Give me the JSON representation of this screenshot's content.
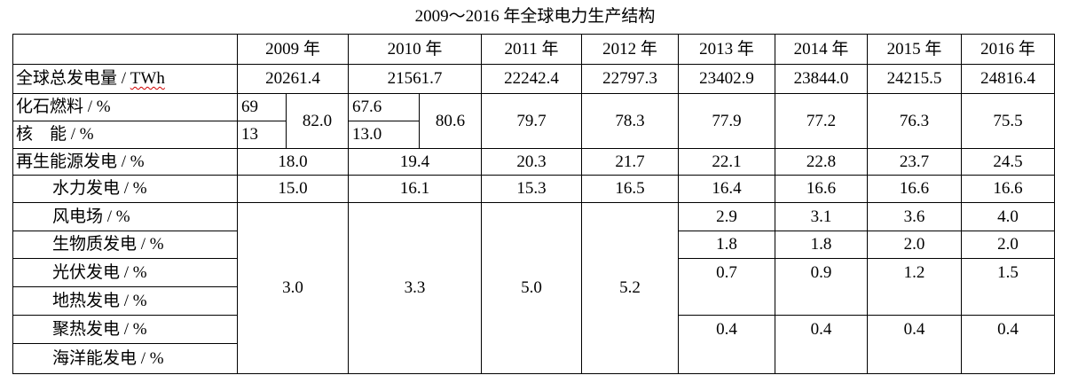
{
  "title": "2009～2016 年全球电力生产结构",
  "years": [
    "2009 年",
    "2010 年",
    "2011 年",
    "2012 年",
    "2013 年",
    "2014 年",
    "2015 年",
    "2016 年"
  ],
  "rows": {
    "total": {
      "label_main": "全球总发电量 / ",
      "label_unit": "TWh",
      "values": [
        "20261.4",
        "21561.7",
        "22242.4",
        "22797.3",
        "23402.9",
        "23844.0",
        "24215.5",
        "24816.4"
      ]
    },
    "fossil": {
      "label": "化石燃料 / %",
      "v2009": "69",
      "v2010": "67.6"
    },
    "nuclear": {
      "label": "核　能 / %",
      "v2009": "13",
      "v2010": "13.0"
    },
    "fossil_nuclear_total": [
      "82.0",
      "80.6",
      "79.7",
      "78.3",
      "77.9",
      "77.2",
      "76.3",
      "75.5"
    ],
    "renewable": {
      "label": "再生能源发电 / %",
      "values": [
        "18.0",
        "19.4",
        "20.3",
        "21.7",
        "22.1",
        "22.8",
        "23.7",
        "24.5"
      ]
    },
    "hydro": {
      "label": "水力发电 / %",
      "values": [
        "15.0",
        "16.1",
        "15.3",
        "16.5",
        "16.4",
        "16.6",
        "16.6",
        "16.6"
      ]
    },
    "other_combined": [
      "3.0",
      "3.3",
      "5.0",
      "5.2"
    ],
    "wind": {
      "label": "风电场 / %",
      "values": [
        "2.9",
        "3.1",
        "3.6",
        "4.0"
      ]
    },
    "biomass": {
      "label": "生物质发电 / %",
      "values": [
        "1.8",
        "1.8",
        "2.0",
        "2.0"
      ]
    },
    "solar": {
      "label": "光伏发电 / %",
      "values": [
        "0.7",
        "0.9",
        "1.2",
        "1.5"
      ]
    },
    "geothermal": {
      "label": "地热发电 / %"
    },
    "solar_thermal": {
      "label": "聚热发电 / %",
      "values": [
        "0.4",
        "0.4",
        "0.4",
        "0.4"
      ]
    },
    "ocean": {
      "label": "海洋能发电 / %"
    }
  }
}
